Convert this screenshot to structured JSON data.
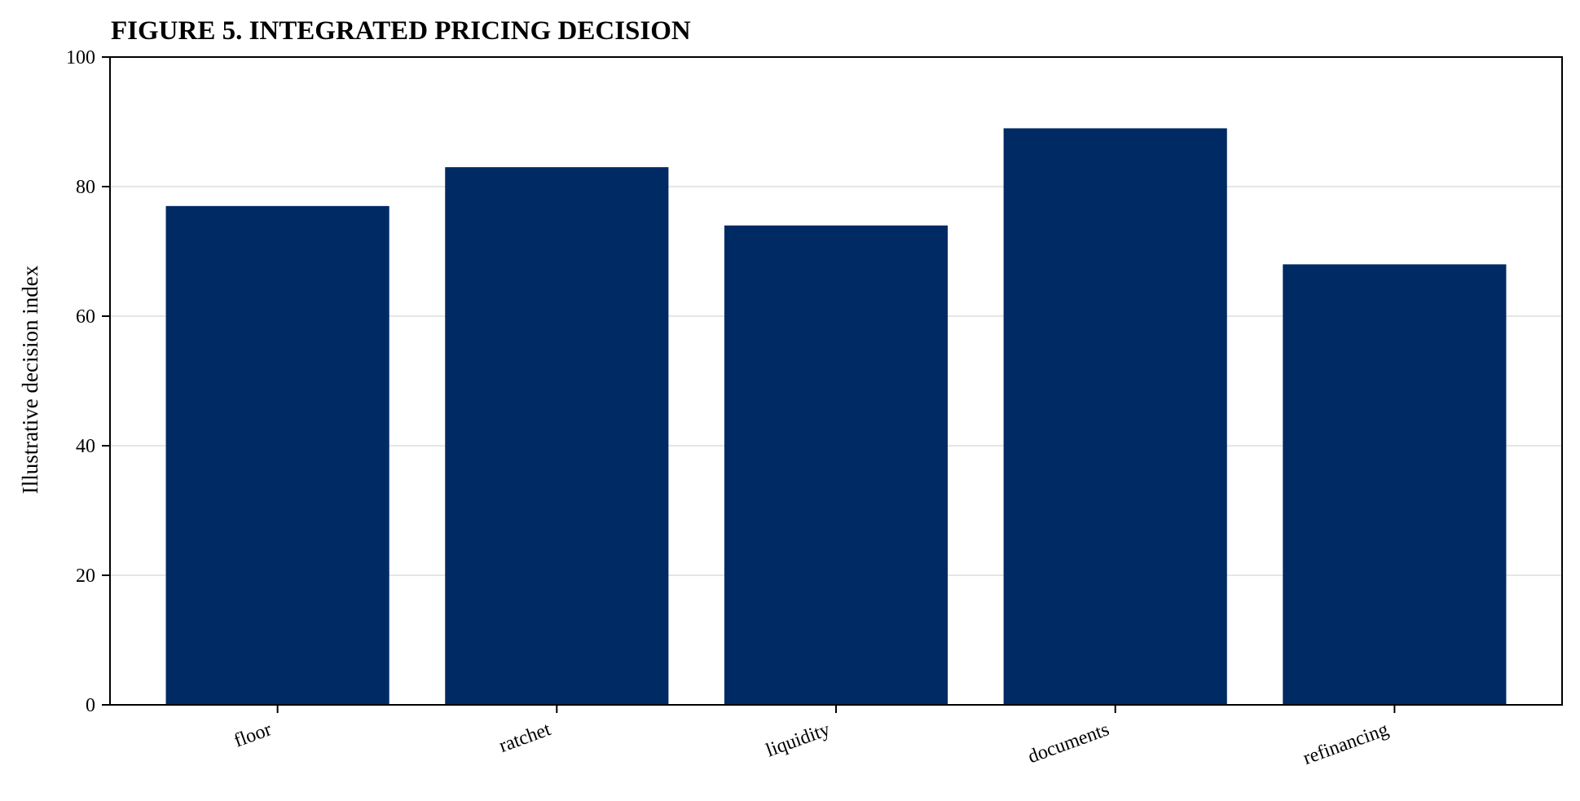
{
  "chart_data": {
    "type": "bar",
    "title": "FIGURE 5. INTEGRATED PRICING DECISION",
    "xlabel": "",
    "ylabel": "Illustrative decision index",
    "categories": [
      "floor",
      "ratchet",
      "liquidity",
      "documents",
      "refinancing"
    ],
    "values": [
      77,
      83,
      74,
      89,
      68
    ],
    "ylim": [
      0,
      100
    ],
    "yticks": [
      0,
      20,
      40,
      60,
      80,
      100
    ],
    "grid": "horizontal",
    "bar_color": "#002a63",
    "grid_color": "#e6e6e6"
  }
}
